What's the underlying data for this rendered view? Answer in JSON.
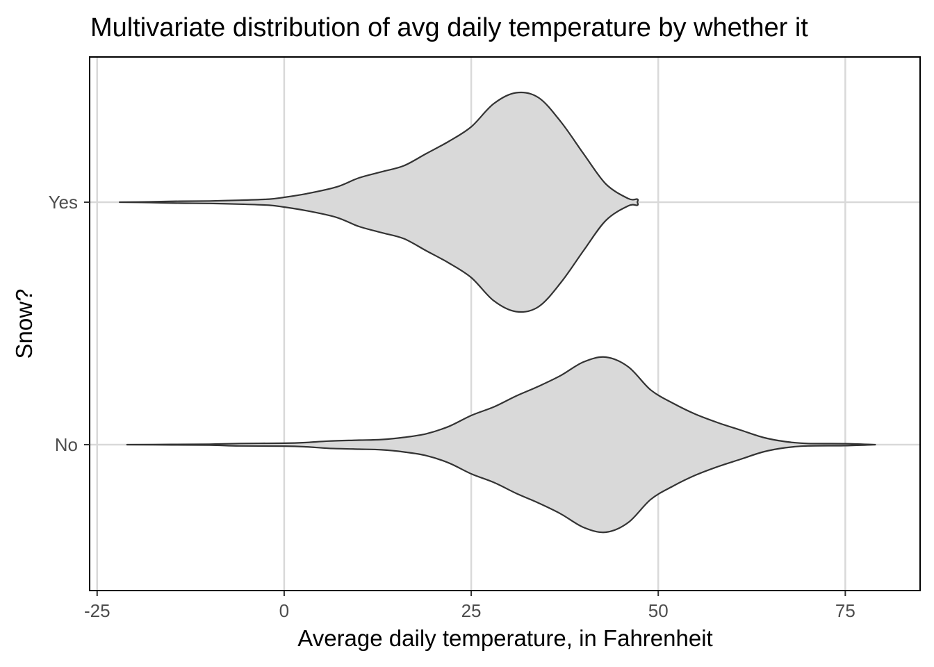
{
  "chart_data": {
    "type": "violin",
    "title": "Multivariate distribution of avg daily temperature by whether it",
    "xlabel": "Average daily temperature, in Fahrenheit",
    "ylabel": "Snow?",
    "xlim": [
      -26,
      85
    ],
    "x_ticks": [
      -25,
      0,
      25,
      50,
      75
    ],
    "x_tick_labels": [
      "-25",
      "0",
      "25",
      "50",
      "75"
    ],
    "categories": [
      "No",
      "Yes"
    ],
    "grid": true,
    "fill_color": "#d9d9d9",
    "line_color": "#333333",
    "series": [
      {
        "category": "Yes",
        "density": [
          [
            -22,
            0.0
          ],
          [
            -18,
            0.003
          ],
          [
            -14,
            0.008
          ],
          [
            -10,
            0.01
          ],
          [
            -6,
            0.016
          ],
          [
            -2,
            0.025
          ],
          [
            0,
            0.04
          ],
          [
            3,
            0.07
          ],
          [
            7,
            0.125
          ],
          [
            10,
            0.2
          ],
          [
            13,
            0.25
          ],
          [
            16,
            0.3
          ],
          [
            19,
            0.4
          ],
          [
            22,
            0.5
          ],
          [
            25,
            0.62
          ],
          [
            28,
            0.81
          ],
          [
            31,
            0.9
          ],
          [
            34,
            0.86
          ],
          [
            37,
            0.66
          ],
          [
            40,
            0.4
          ],
          [
            43,
            0.15
          ],
          [
            46,
            0.03
          ],
          [
            47.2,
            0.025
          ],
          [
            47.2,
            0.0
          ]
        ]
      },
      {
        "category": "No",
        "density": [
          [
            -21,
            0.0
          ],
          [
            -15,
            0.002
          ],
          [
            -10,
            0.004
          ],
          [
            -6,
            0.01
          ],
          [
            0,
            0.012
          ],
          [
            3,
            0.018
          ],
          [
            6,
            0.03
          ],
          [
            10,
            0.037
          ],
          [
            13,
            0.042
          ],
          [
            16,
            0.06
          ],
          [
            19,
            0.09
          ],
          [
            22,
            0.15
          ],
          [
            25,
            0.24
          ],
          [
            28,
            0.31
          ],
          [
            31,
            0.4
          ],
          [
            34,
            0.48
          ],
          [
            37,
            0.57
          ],
          [
            40,
            0.68
          ],
          [
            43,
            0.72
          ],
          [
            46,
            0.64
          ],
          [
            49,
            0.45
          ],
          [
            52,
            0.34
          ],
          [
            55,
            0.25
          ],
          [
            58,
            0.18
          ],
          [
            61,
            0.12
          ],
          [
            64,
            0.06
          ],
          [
            67,
            0.025
          ],
          [
            70,
            0.01
          ],
          [
            75,
            0.008
          ],
          [
            79,
            0.0
          ]
        ]
      }
    ]
  }
}
